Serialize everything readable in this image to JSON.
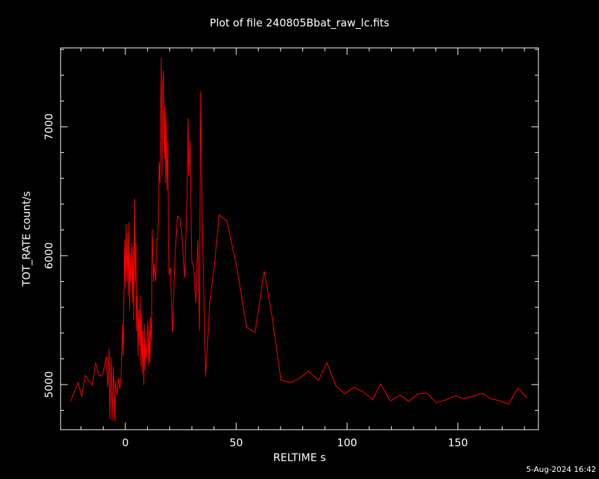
{
  "chart_data": {
    "type": "line",
    "title": "Plot of file 240805Bbat_raw_lc.fits",
    "x_label": "RELTIME  s",
    "y_label": "TOT_RATE  count/s",
    "footer": "5-Aug-2024 16:42",
    "xlim": [
      -29.2,
      186.3
    ],
    "ylim": [
      4650,
      7612
    ],
    "xticks": [
      0,
      50,
      100,
      150
    ],
    "yticks": [
      5000,
      6000,
      7000
    ],
    "xminorticks": [
      -20,
      -10,
      10,
      20,
      30,
      40,
      60,
      70,
      80,
      90,
      110,
      120,
      130,
      140,
      160,
      170,
      180
    ],
    "yminorticks": [
      4800,
      5200,
      5400,
      5600,
      5800,
      6200,
      6400,
      6600,
      6800,
      7200,
      7400,
      7600
    ],
    "series": [
      {
        "color": "#ff0000",
        "x": [
          -24.8,
          -21.3,
          -19.7,
          -18.1,
          -14.9,
          -13.4,
          -11.8,
          -10.2,
          -8.6,
          -7.9,
          -7.3,
          -7.0,
          -6.4,
          -6.0,
          -5.4,
          -4.8,
          -4.5,
          -3.8,
          -3.2,
          -2.5,
          -1.9,
          -1.3,
          -1.0,
          -0.3,
          0,
          0.3,
          0.6,
          1.0,
          1.3,
          1.6,
          1.9,
          2.2,
          2.5,
          2.9,
          3.2,
          3.5,
          3.8,
          4.1,
          4.5,
          4.8,
          5.1,
          5.4,
          5.7,
          6.0,
          6.4,
          6.7,
          7.0,
          7.3,
          7.6,
          7.9,
          8.3,
          8.6,
          8.9,
          9.2,
          9.5,
          10.2,
          10.5,
          10.8,
          11.1,
          11.4,
          11.8,
          12.1,
          12.7,
          13.0,
          13.7,
          14.0,
          14.6,
          15.3,
          15.6,
          16.2,
          16.5,
          16.9,
          17.2,
          17.5,
          17.8,
          18.1,
          18.4,
          18.8,
          19.1,
          19.7,
          20.3,
          21.3,
          22.3,
          23.5,
          24.8,
          25.7,
          26.7,
          27.7,
          28.3,
          28.6,
          29.2,
          29.9,
          30.8,
          31.8,
          32.7,
          33.4,
          34.0,
          34.6,
          36.2,
          38.1,
          40.4,
          42.3,
          45.8,
          50.2,
          54.7,
          58.5,
          62.6,
          66.1,
          70.2,
          74.7,
          78.2,
          82.6,
          87.1,
          90.9,
          95.0,
          98.9,
          103.0,
          107.1,
          111.6,
          115.1,
          119.5,
          124.0,
          127.8,
          131.9,
          136.0,
          140.2,
          144.3,
          148.8,
          152.6,
          156.7,
          160.9,
          164.7,
          168.8,
          172.9,
          177.0,
          181.2
        ],
        "values": [
          4869,
          5016,
          4907,
          5071,
          4995,
          5169,
          5066,
          5077,
          5219,
          4978,
          5279,
          4732,
          5213,
          4721,
          5142,
          4716,
          5033,
          4923,
          5049,
          4967,
          5055,
          5470,
          5224,
          6126,
          5743,
          6246,
          5798,
          6180,
          5689,
          6257,
          5579,
          6016,
          5798,
          6098,
          5634,
          6071,
          5497,
          6443,
          5798,
          6098,
          5415,
          5689,
          5224,
          5579,
          5306,
          5689,
          5142,
          5552,
          5087,
          5415,
          4995,
          5470,
          5115,
          5333,
          5197,
          5497,
          5142,
          5415,
          5169,
          5525,
          5333,
          6208,
          5798,
          5934,
          5798,
          6126,
          6126,
          6727,
          6563,
          7536,
          6617,
          7328,
          7437,
          6754,
          7164,
          6563,
          7055,
          6508,
          6891,
          5852,
          5907,
          5404,
          5962,
          6306,
          6279,
          6126,
          5825,
          6344,
          7066,
          6617,
          6891,
          5962,
          5907,
          5634,
          6126,
          5415,
          7273,
          6344,
          5060,
          5634,
          5962,
          6317,
          6268,
          5918,
          5443,
          5404,
          5880,
          5536,
          5033,
          5016,
          5044,
          5104,
          5033,
          5169,
          4989,
          4929,
          4978,
          4945,
          4885,
          5005,
          4874,
          4918,
          4869,
          4929,
          4934,
          4858,
          4880,
          4913,
          4891,
          4907,
          4934,
          4891,
          4874,
          4847,
          4973,
          4896
        ]
      }
    ]
  }
}
